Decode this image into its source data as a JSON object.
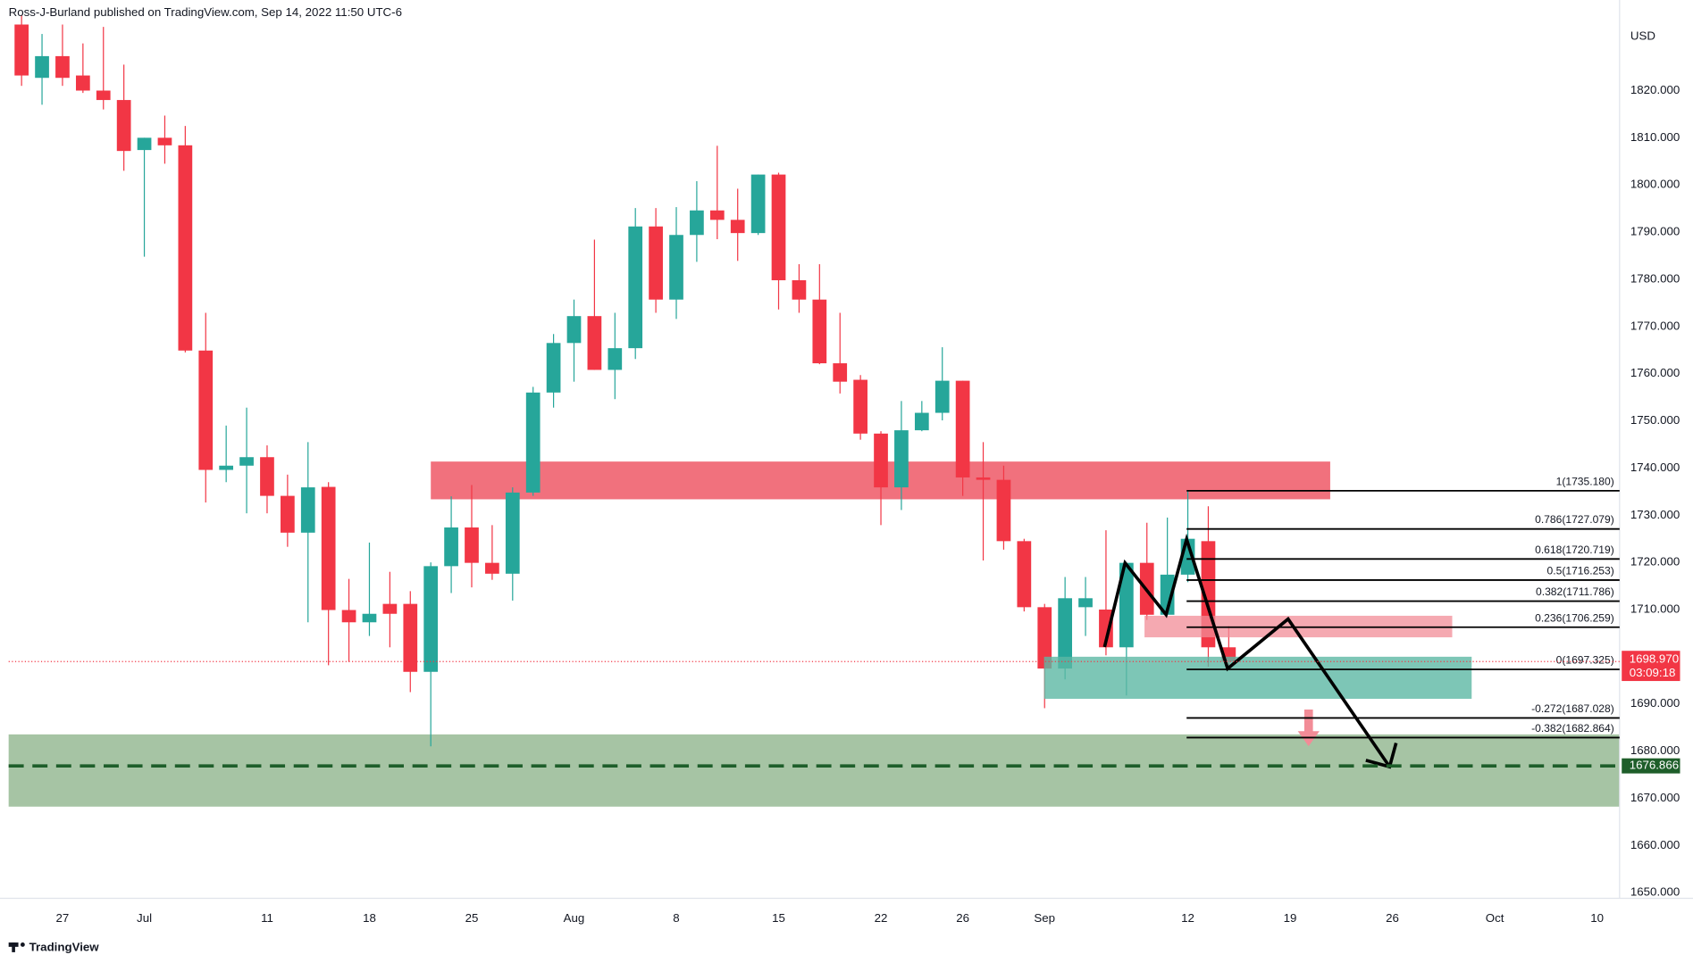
{
  "header": "Ross-J-Burland published on TradingView.com, Sep 14, 2022 11:50 UTC-6",
  "footer": "TradingView",
  "chart_data": {
    "type": "candlestick",
    "ylabel": "USD",
    "categories": [
      null,
      null,
      "27",
      null,
      null,
      null,
      "Jul",
      null,
      null,
      null,
      null,
      null,
      "11",
      null,
      null,
      null,
      null,
      "18",
      null,
      null,
      null,
      null,
      "25",
      null,
      null,
      null,
      null,
      "Aug",
      null,
      null,
      null,
      null,
      "8",
      null,
      null,
      null,
      null,
      "15",
      null,
      null,
      null,
      null,
      "22",
      null,
      null,
      null,
      "26",
      null,
      null,
      null,
      "Sep",
      null,
      null,
      null,
      null,
      null,
      null,
      "12",
      null,
      null,
      null,
      null,
      "19",
      null,
      null,
      null,
      null,
      "26",
      null,
      null,
      null,
      null,
      "Oct",
      null,
      null,
      null,
      null,
      "10"
    ],
    "open": [
      1834,
      1822.7,
      1827.3,
      1823.2,
      1820,
      1818,
      1807.4,
      1810,
      1808.4,
      1764.9,
      1739.6,
      1740.5,
      1742.3,
      1734.1,
      1726.3,
      1736,
      1709.9,
      1707.3,
      1711.2,
      1711.2,
      1696.8,
      1719.2,
      1727.4,
      1719.9,
      1717.6,
      1734.8,
      1756,
      1766.5,
      1772.2,
      1760.8,
      1765.4,
      1791.2,
      1775.7,
      1789.4,
      1794.6,
      1792.6,
      1789.8,
      1802.2,
      1779.8,
      1775.7,
      1762.2,
      1758.7,
      1747.3,
      1735.9,
      1748,
      1751.7,
      1758.5,
      1738,
      1737.5,
      1724.5,
      1710.5,
      1697.5,
      1710.5,
      1710,
      1702,
      1719.9,
      1708.9,
      1717.4,
      1724.5,
      1702,
      null,
      null,
      null,
      null,
      null,
      null,
      null,
      null,
      null,
      null,
      null,
      null,
      null,
      null,
      null,
      null,
      null,
      null
    ],
    "high": [
      1836,
      1832,
      1834,
      1830,
      1833.5,
      1825.5,
      1810,
      1814.7,
      1812.5,
      1772.9,
      1749,
      1752.8,
      1744.8,
      1738.6,
      1745.5,
      1737,
      1716.5,
      1724.2,
      1718,
      1713.9,
      1720,
      1734,
      1736.4,
      1727.9,
      1735.9,
      1757.2,
      1768.4,
      1775.7,
      1788.4,
      1772.9,
      1795.1,
      1795.1,
      1795.3,
      1800.8,
      1808.3,
      1799.2,
      1802.2,
      1802.6,
      1783.2,
      1783.2,
      1772.9,
      1759.7,
      1747.8,
      1754.2,
      1754.2,
      1765.6,
      1758.5,
      1745.5,
      1740.5,
      1725,
      1711.2,
      1716.9,
      1716.9,
      1726.8,
      1719.9,
      1728.4,
      1729.5,
      1735.18,
      1731.9,
      1706.5,
      null,
      null,
      null,
      null,
      null,
      null,
      null,
      null,
      null,
      null,
      null,
      null,
      null,
      null,
      null,
      null,
      null,
      null
    ],
    "low": [
      1821,
      1817,
      1821,
      1819.5,
      1816,
      1803,
      1784.8,
      1804.5,
      1764.5,
      1732.7,
      1737,
      1730.4,
      1730.4,
      1723.3,
      1707.3,
      1698.2,
      1698.9,
      1704.4,
      1702,
      1692.5,
      1681,
      1713.5,
      1714.7,
      1716.3,
      1711.9,
      1734.1,
      1752.8,
      1758.3,
      1760.8,
      1754.6,
      1763.1,
      1772.9,
      1771.6,
      1783.7,
      1788.5,
      1783.9,
      1789.4,
      1773.6,
      1772.9,
      1762,
      1755.8,
      1746,
      1727.9,
      1731.1,
      1747.8,
      1750.1,
      1734.1,
      1720.4,
      1722.7,
      1709.6,
      1689.1,
      1695.2,
      1704.4,
      1700.3,
      1691.8,
      1707.8,
      1708.9,
      1715.8,
      1697.9,
      1697.325,
      null,
      null,
      null,
      null,
      null,
      null,
      null,
      null,
      null,
      null,
      null,
      null,
      null,
      null,
      null,
      null,
      null,
      null
    ],
    "close": [
      1823.2,
      1827.3,
      1822.7,
      1820,
      1818,
      1807.2,
      1810,
      1808.4,
      1764.9,
      1739.6,
      1740.5,
      1742.3,
      1734.1,
      1726.3,
      1735.9,
      1709.9,
      1707.3,
      1709.1,
      1709.1,
      1696.8,
      1719.2,
      1727.4,
      1719.9,
      1717.6,
      1734.8,
      1756,
      1766.5,
      1772.2,
      1760.8,
      1765.4,
      1791.2,
      1775.7,
      1789.4,
      1794.6,
      1792.6,
      1789.8,
      1802.2,
      1779.8,
      1775.7,
      1762.2,
      1758.3,
      1747.3,
      1735.9,
      1748,
      1751.7,
      1758.5,
      1738,
      1737.5,
      1724.5,
      1710.5,
      1697.5,
      1712.4,
      1712.4,
      1702,
      1719.9,
      1708.9,
      1717.4,
      1725,
      1702,
      1698.97,
      null,
      null,
      null,
      null,
      null,
      null,
      null,
      null,
      null,
      null,
      null,
      null,
      null,
      null,
      null,
      null,
      null,
      null
    ],
    "up_color": "#26a69a",
    "down_color": "#f23645",
    "ylim": [
      1648.8,
      1839.2
    ],
    "yticks": [
      {
        "value": 1650,
        "label": "1650.000"
      },
      {
        "value": 1660,
        "label": "1660.000"
      },
      {
        "value": 1670,
        "label": "1670.000"
      },
      {
        "value": 1680,
        "label": "1680.000"
      },
      {
        "value": 1690,
        "label": "1690.000"
      },
      {
        "value": 1700,
        "label": "1700.000"
      },
      {
        "value": 1710,
        "label": "1710.000"
      },
      {
        "value": 1720,
        "label": "1720.000"
      },
      {
        "value": 1730,
        "label": "1730.000"
      },
      {
        "value": 1740,
        "label": "1740.000"
      },
      {
        "value": 1750,
        "label": "1750.000"
      },
      {
        "value": 1760,
        "label": "1760.000"
      },
      {
        "value": 1770,
        "label": "1770.000"
      },
      {
        "value": 1780,
        "label": "1780.000"
      },
      {
        "value": 1790,
        "label": "1790.000"
      },
      {
        "value": 1800,
        "label": "1800.000"
      },
      {
        "value": 1810,
        "label": "1810.000"
      },
      {
        "value": 1820,
        "label": "1820.000"
      }
    ],
    "grid": false,
    "fib_levels": [
      {
        "value": 1735.18,
        "label": "1(1735.180)"
      },
      {
        "value": 1727.079,
        "label": "0.786(1727.079)"
      },
      {
        "value": 1720.719,
        "label": "0.618(1720.719)"
      },
      {
        "value": 1716.253,
        "label": "0.5(1716.253)"
      },
      {
        "value": 1711.786,
        "label": "0.382(1711.786)"
      },
      {
        "value": 1706.259,
        "label": "0.236(1706.259)"
      },
      {
        "value": 1697.325,
        "label": "0(1697.325)"
      },
      {
        "value": 1687.028,
        "label": "-0.272(1687.028)"
      },
      {
        "value": 1682.864,
        "label": "-0.382(1682.864)"
      }
    ],
    "last_price": {
      "value": 1698.97,
      "label": "1698.970"
    },
    "countdown": "03:09:18",
    "target": {
      "value": 1676.866,
      "label": "1676.866"
    }
  }
}
